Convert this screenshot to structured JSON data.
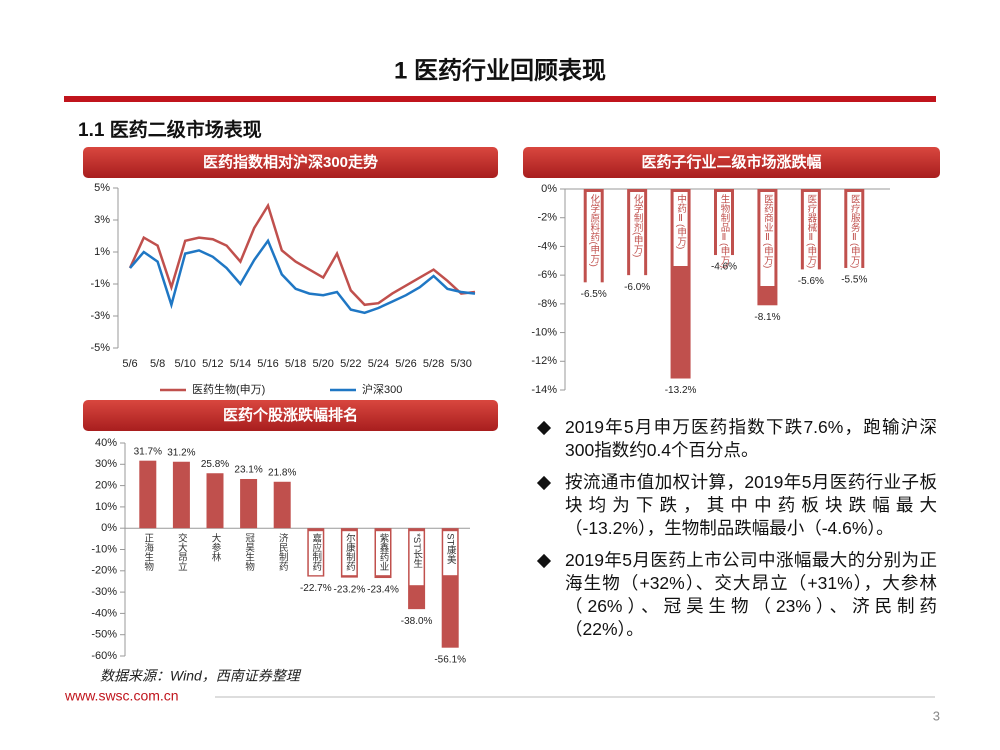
{
  "title": "1 医药行业回顾表现",
  "subtitle": "1.1 医药二级市场表现",
  "chart_data": [
    {
      "type": "line",
      "title": "医药指数相对沪深300走势",
      "categories": [
        "5/6",
        null,
        "5/8",
        null,
        "5/10",
        null,
        "5/12",
        null,
        "5/14",
        null,
        "5/16",
        null,
        "5/18",
        null,
        "5/20",
        null,
        "5/22",
        null,
        "5/24",
        null,
        "5/26",
        null,
        "5/28",
        null,
        "5/30",
        null
      ],
      "series": [
        {
          "name": "医药生物(申万)",
          "color": "#c0504d",
          "values": [
            0,
            1.9,
            1.4,
            -1.2,
            1.7,
            1.9,
            1.8,
            1.4,
            0.4,
            2.5,
            3.9,
            1.1,
            0.4,
            -0.1,
            -0.6,
            0.9,
            -1.4,
            -2.3,
            -2.2,
            -1.6,
            -1.1,
            -0.6,
            -0.1,
            -0.8,
            -1.6,
            -1.5
          ]
        },
        {
          "name": "沪深300",
          "color": "#1f77c4",
          "values": [
            0,
            1.0,
            0.4,
            -2.3,
            0.9,
            1.1,
            0.7,
            0.0,
            -1.0,
            0.5,
            1.7,
            -0.4,
            -1.3,
            -1.6,
            -1.7,
            -1.5,
            -2.6,
            -2.8,
            -2.5,
            -2.1,
            -1.7,
            -1.2,
            -0.5,
            -1.3,
            -1.5,
            -1.6
          ]
        }
      ],
      "ylim": [
        -5,
        5
      ],
      "yticks": [
        {
          "value": 5,
          "label": "5%"
        },
        {
          "value": 3,
          "label": "3%"
        },
        {
          "value": 1,
          "label": "1%"
        },
        {
          "value": -1,
          "label": "-1%"
        },
        {
          "value": -3,
          "label": "-3%"
        },
        {
          "value": -5,
          "label": "-5%"
        }
      ]
    },
    {
      "type": "bar",
      "title": "医药子行业二级市场涨跌幅",
      "color": "#c0504d",
      "categories": [
        "化学原料药(申万)",
        "化学制剂(申万)",
        "中药Ⅱ(申万)",
        "生物制品Ⅱ(申万)",
        "医药商业Ⅱ(申万)",
        "医疗器械Ⅱ(申万)",
        "医疗服务Ⅱ(申万)"
      ],
      "values": [
        -6.5,
        -6.0,
        -13.2,
        -4.6,
        -8.1,
        -5.6,
        -5.5
      ],
      "value_labels": [
        "-6.5%",
        "-6.0%",
        "-13.2%",
        "-4.6%",
        "-8.1%",
        "-5.6%",
        "-5.5%"
      ],
      "ylim": [
        -14,
        0
      ],
      "yticks": [
        {
          "value": 0,
          "label": "0%"
        },
        {
          "value": -2,
          "label": "-2%"
        },
        {
          "value": -4,
          "label": "-4%"
        },
        {
          "value": -6,
          "label": "-6%"
        },
        {
          "value": -8,
          "label": "-8%"
        },
        {
          "value": -10,
          "label": "-10%"
        },
        {
          "value": -12,
          "label": "-12%"
        },
        {
          "value": -14,
          "label": "-14%"
        }
      ]
    },
    {
      "type": "bar",
      "title": "医药个股涨跌幅排名",
      "color": "#c0504d",
      "categories": [
        "正海生物",
        "交大昂立",
        "大参林",
        "冠昊生物",
        "济民制药",
        "嘉应制药",
        "尔康制药",
        "紫鑫药业",
        "*ST长生",
        "ST康美"
      ],
      "values": [
        31.7,
        31.2,
        25.8,
        23.1,
        21.8,
        -22.7,
        -23.2,
        -23.4,
        -38.0,
        -56.1
      ],
      "value_labels": [
        "31.7%",
        "31.2%",
        "25.8%",
        "23.1%",
        "21.8%",
        "-22.7%",
        "-23.2%",
        "-23.4%",
        "-38.0%",
        "-56.1%"
      ],
      "ylim": [
        -60,
        40
      ],
      "yticks": [
        {
          "value": 40,
          "label": "40%"
        },
        {
          "value": 30,
          "label": "30%"
        },
        {
          "value": 20,
          "label": "20%"
        },
        {
          "value": 10,
          "label": "10%"
        },
        {
          "value": 0,
          "label": "0%"
        },
        {
          "value": -10,
          "label": "-10%"
        },
        {
          "value": -20,
          "label": "-20%"
        },
        {
          "value": -30,
          "label": "-30%"
        },
        {
          "value": -40,
          "label": "-40%"
        },
        {
          "value": -50,
          "label": "-50%"
        },
        {
          "value": -60,
          "label": "-60%"
        }
      ]
    }
  ],
  "bullets": [
    "2019年5月申万医药指数下跌7.6%，跑输沪深300指数约0.4个百分点。",
    "按流通市值加权计算，2019年5月医药行业子板块均为下跌，其中中药板块跌幅最大（-13.2%），生物制品跌幅最小（-4.6%）。",
    "2019年5月医药上市公司中涨幅最大的分别为正海生物（+32%）、交大昂立（+31%），大参林（26%）、冠昊生物（23%）、济民制药（22%）。"
  ],
  "source": "数据来源：Wind，西南证券整理",
  "url": "www.swsc.com.cn",
  "page": "3"
}
